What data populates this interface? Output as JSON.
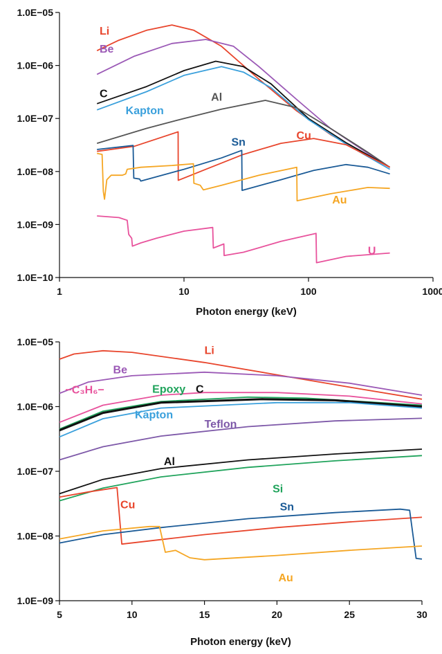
{
  "chart_data": [
    {
      "type": "line",
      "title": "",
      "xlabel": "Photon energy (keV)",
      "ylabel": "",
      "xscale": "log",
      "yscale": "log",
      "xlim": [
        1,
        1000
      ],
      "ylim": [
        1e-10,
        1e-05
      ],
      "xticks": [
        {
          "value": 1,
          "label": "1"
        },
        {
          "value": 10,
          "label": "10"
        },
        {
          "value": 100,
          "label": "100"
        },
        {
          "value": 1000,
          "label": "1000"
        }
      ],
      "yticks": [
        {
          "value": 1e-10,
          "label": "1.0E−10"
        },
        {
          "value": 1e-09,
          "label": "1.0E−09"
        },
        {
          "value": 1e-08,
          "label": "1.0E−08"
        },
        {
          "value": 1e-07,
          "label": "1.0E−07"
        },
        {
          "value": 1e-06,
          "label": "1.0E−06"
        },
        {
          "value": 1e-05,
          "label": "1.0E−05"
        }
      ],
      "grid": false,
      "series": [
        {
          "name": "Li",
          "color": "#e8452c",
          "label_at": [
            2.1,
            4.6e-06
          ],
          "points": [
            [
              2,
              1.9e-06
            ],
            [
              3,
              3e-06
            ],
            [
              5,
              4.6e-06
            ],
            [
              8,
              5.8e-06
            ],
            [
              12,
              4.6e-06
            ],
            [
              20,
              2.3e-06
            ],
            [
              40,
              5.5e-07
            ],
            [
              80,
              1.4e-07
            ],
            [
              150,
              5e-08
            ],
            [
              300,
              2e-08
            ],
            [
              450,
              1.2e-08
            ]
          ]
        },
        {
          "name": "Be",
          "color": "#9b59b6",
          "label_at": [
            2.1,
            2.1e-06
          ],
          "points": [
            [
              2,
              6.8e-07
            ],
            [
              4,
              1.5e-06
            ],
            [
              8,
              2.6e-06
            ],
            [
              15,
              3.1e-06
            ],
            [
              25,
              2.3e-06
            ],
            [
              40,
              9.5e-07
            ],
            [
              80,
              2.3e-07
            ],
            [
              150,
              6.5e-08
            ],
            [
              300,
              2.2e-08
            ],
            [
              450,
              1.2e-08
            ]
          ]
        },
        {
          "name": "C",
          "color": "#111111",
          "label_at": [
            2.1,
            3e-07
          ],
          "points": [
            [
              2,
              1.9e-07
            ],
            [
              5,
              4e-07
            ],
            [
              10,
              8e-07
            ],
            [
              18,
              1.2e-06
            ],
            [
              30,
              9.5e-07
            ],
            [
              50,
              4.5e-07
            ],
            [
              100,
              1e-07
            ],
            [
              200,
              3.5e-08
            ],
            [
              450,
              1.2e-08
            ]
          ]
        },
        {
          "name": "Kapton",
          "color": "#3aa0dc",
          "label_at": [
            3.4,
            1.45e-07
          ],
          "points": [
            [
              2,
              1.45e-07
            ],
            [
              5,
              3.2e-07
            ],
            [
              10,
              6.5e-07
            ],
            [
              20,
              9.5e-07
            ],
            [
              30,
              7.5e-07
            ],
            [
              50,
              3.8e-07
            ],
            [
              100,
              9.5e-08
            ],
            [
              200,
              3.3e-08
            ],
            [
              450,
              1.1e-08
            ]
          ]
        },
        {
          "name": "Al",
          "color": "#555555",
          "label_at": [
            16.5,
            2.6e-07
          ],
          "points": [
            [
              2,
              3.4e-08
            ],
            [
              5,
              6.5e-08
            ],
            [
              10,
              1e-07
            ],
            [
              20,
              1.5e-07
            ],
            [
              45,
              2.2e-07
            ],
            [
              80,
              1.6e-07
            ],
            [
              150,
              6.5e-08
            ],
            [
              300,
              2.3e-08
            ],
            [
              450,
              1.2e-08
            ]
          ]
        },
        {
          "name": "Cu",
          "color": "#e8452c",
          "label_at": [
            80,
            4.9e-08
          ],
          "points": [
            [
              2,
              2.4e-08
            ],
            [
              4,
              3e-08
            ],
            [
              8.97,
              5.6e-08
            ],
            [
              8.99,
              6.8e-09
            ],
            [
              15,
              1.1e-08
            ],
            [
              30,
              2.1e-08
            ],
            [
              60,
              3.4e-08
            ],
            [
              110,
              4.2e-08
            ],
            [
              200,
              3.2e-08
            ],
            [
              450,
              1.2e-08
            ]
          ]
        },
        {
          "name": "Sn",
          "color": "#1a5a96",
          "label_at": [
            24,
            3.7e-08
          ],
          "points": [
            [
              2,
              2.6e-08
            ],
            [
              3.9,
              3.1e-08
            ],
            [
              3.95,
              7.5e-09
            ],
            [
              4.4,
              7.2e-09
            ],
            [
              4.5,
              6.6e-09
            ],
            [
              10,
              1.1e-08
            ],
            [
              20,
              1.8e-08
            ],
            [
              29.1,
              2.5e-08
            ],
            [
              29.3,
              4.4e-09
            ],
            [
              60,
              7e-09
            ],
            [
              110,
              1.05e-08
            ],
            [
              200,
              1.35e-08
            ],
            [
              300,
              1.2e-08
            ],
            [
              450,
              9e-09
            ]
          ]
        },
        {
          "name": "Au",
          "color": "#f5a623",
          "label_at": [
            155,
            3e-09
          ],
          "points": [
            [
              2,
              2.2e-08
            ],
            [
              2.2,
              2.1e-08
            ],
            [
              2.25,
              4.2e-09
            ],
            [
              2.3,
              3e-09
            ],
            [
              2.4,
              7e-09
            ],
            [
              2.6,
              8.5e-09
            ],
            [
              3.2,
              8.5e-09
            ],
            [
              3.4,
              9e-09
            ],
            [
              3.5,
              1.1e-08
            ],
            [
              4.5,
              1.2e-08
            ],
            [
              8,
              1.3e-08
            ],
            [
              11.9,
              1.4e-08
            ],
            [
              12,
              6e-09
            ],
            [
              13.5,
              5.5e-09
            ],
            [
              14.3,
              4.5e-09
            ],
            [
              20,
              5.5e-09
            ],
            [
              40,
              8.5e-09
            ],
            [
              80.5,
              1.2e-08
            ],
            [
              81,
              2.8e-09
            ],
            [
              150,
              3.8e-09
            ],
            [
              300,
              5e-09
            ],
            [
              450,
              4.8e-09
            ]
          ]
        },
        {
          "name": "U",
          "color": "#e8529c",
          "label_at": [
            300,
            3.3e-10
          ],
          "points": [
            [
              2,
              1.45e-09
            ],
            [
              3,
              1.35e-09
            ],
            [
              3.5,
              1.2e-09
            ],
            [
              3.6,
              6.5e-10
            ],
            [
              3.8,
              5.5e-10
            ],
            [
              3.85,
              3.9e-10
            ],
            [
              4.5,
              4.5e-10
            ],
            [
              6,
              5.5e-10
            ],
            [
              10,
              7.5e-10
            ],
            [
              17,
              8.8e-10
            ],
            [
              17.2,
              3.6e-10
            ],
            [
              20.9,
              4.3e-10
            ],
            [
              21,
              2.6e-10
            ],
            [
              30,
              3e-10
            ],
            [
              60,
              4.8e-10
            ],
            [
              115,
              6.8e-10
            ],
            [
              116,
              1.9e-10
            ],
            [
              200,
              2.5e-10
            ],
            [
              450,
              2.9e-10
            ]
          ]
        }
      ]
    },
    {
      "type": "line",
      "title": "",
      "xlabel": "Photon energy (keV)",
      "ylabel": "",
      "xscale": "linear",
      "yscale": "log",
      "xlim": [
        5,
        30
      ],
      "ylim": [
        1e-09,
        1e-05
      ],
      "xticks": [
        {
          "value": 5,
          "label": "5"
        },
        {
          "value": 10,
          "label": "10"
        },
        {
          "value": 15,
          "label": "15"
        },
        {
          "value": 20,
          "label": "20"
        },
        {
          "value": 25,
          "label": "25"
        },
        {
          "value": 30,
          "label": "30"
        }
      ],
      "yticks": [
        {
          "value": 1e-09,
          "label": "1.0E−09"
        },
        {
          "value": 1e-08,
          "label": "1.0E−08"
        },
        {
          "value": 1e-07,
          "label": "1.0E−07"
        },
        {
          "value": 1e-06,
          "label": "1.0E−06"
        },
        {
          "value": 1e-05,
          "label": "1.0E−05"
        }
      ],
      "grid": false,
      "series": [
        {
          "name": "Li",
          "color": "#e8452c",
          "label_at": [
            15,
            7.5e-06
          ],
          "points": [
            [
              5,
              5.4e-06
            ],
            [
              6,
              6.5e-06
            ],
            [
              8,
              7.3e-06
            ],
            [
              10,
              6.9e-06
            ],
            [
              15,
              4.8e-06
            ],
            [
              20,
              3.1e-06
            ],
            [
              25,
              2e-06
            ],
            [
              30,
              1.3e-06
            ]
          ]
        },
        {
          "name": "Be",
          "color": "#9b59b6",
          "label_at": [
            8.7,
            3.8e-06
          ],
          "points": [
            [
              5,
              1.6e-06
            ],
            [
              7,
              2.4e-06
            ],
            [
              10,
              3e-06
            ],
            [
              15,
              3.4e-06
            ],
            [
              20,
              3e-06
            ],
            [
              25,
              2.3e-06
            ],
            [
              30,
              1.5e-06
            ]
          ]
        },
        {
          "name": "−C₃H₆−",
          "color": "#e8529c",
          "label_at": [
            5.4,
            1.85e-06
          ],
          "points": [
            [
              5,
              5.7e-07
            ],
            [
              8,
              1.05e-06
            ],
            [
              12,
              1.5e-06
            ],
            [
              15,
              1.65e-06
            ],
            [
              20,
              1.65e-06
            ],
            [
              25,
              1.45e-06
            ],
            [
              30,
              1.1e-06
            ]
          ]
        },
        {
          "name": "Epoxy",
          "color": "#1fa35b",
          "label_at": [
            11.4,
            1.9e-06
          ],
          "points": [
            [
              5,
              4.5e-07
            ],
            [
              8,
              8.5e-07
            ],
            [
              12,
              1.2e-06
            ],
            [
              18,
              1.4e-06
            ],
            [
              22,
              1.35e-06
            ],
            [
              30,
              1.05e-06
            ]
          ]
        },
        {
          "name": "C",
          "color": "#111111",
          "label_at": [
            14.4,
            1.9e-06
          ],
          "width": 3,
          "points": [
            [
              5,
              4.3e-07
            ],
            [
              8,
              8e-07
            ],
            [
              12,
              1.15e-06
            ],
            [
              19,
              1.3e-06
            ],
            [
              24,
              1.25e-06
            ],
            [
              30,
              1e-06
            ]
          ]
        },
        {
          "name": "Kapton",
          "color": "#3aa0dc",
          "label_at": [
            10.2,
            7.6e-07
          ],
          "points": [
            [
              5,
              3.4e-07
            ],
            [
              8,
              6.5e-07
            ],
            [
              12,
              9.5e-07
            ],
            [
              20,
              1.15e-06
            ],
            [
              25,
              1.15e-06
            ],
            [
              30,
              9.5e-07
            ]
          ]
        },
        {
          "name": "Teflon",
          "color": "#7d58a8",
          "label_at": [
            15,
            5.5e-07
          ],
          "points": [
            [
              5,
              1.5e-07
            ],
            [
              8,
              2.4e-07
            ],
            [
              12,
              3.5e-07
            ],
            [
              18,
              4.9e-07
            ],
            [
              24,
              6e-07
            ],
            [
              30,
              6.6e-07
            ]
          ]
        },
        {
          "name": "Al",
          "color": "#111111",
          "label_at": [
            12.2,
            1.45e-07
          ],
          "points": [
            [
              5,
              4.5e-08
            ],
            [
              8,
              7.5e-08
            ],
            [
              12,
              1.1e-07
            ],
            [
              18,
              1.5e-07
            ],
            [
              24,
              1.85e-07
            ],
            [
              30,
              2.2e-07
            ]
          ]
        },
        {
          "name": "Si",
          "color": "#1fa35b",
          "label_at": [
            19.7,
            5.5e-08
          ],
          "points": [
            [
              5,
              3.5e-08
            ],
            [
              8,
              5.5e-08
            ],
            [
              12,
              8.2e-08
            ],
            [
              18,
              1.15e-07
            ],
            [
              24,
              1.45e-07
            ],
            [
              30,
              1.75e-07
            ]
          ]
        },
        {
          "name": "Cu",
          "color": "#e8452c",
          "label_at": [
            9.2,
            3.1e-08
          ],
          "points": [
            [
              5,
              4e-08
            ],
            [
              7,
              4.8e-08
            ],
            [
              8.97,
              5.6e-08
            ],
            [
              9.3,
              7.5e-09
            ],
            [
              12,
              8.8e-09
            ],
            [
              15,
              1.05e-08
            ],
            [
              20,
              1.35e-08
            ],
            [
              25,
              1.65e-08
            ],
            [
              30,
              1.95e-08
            ]
          ]
        },
        {
          "name": "Sn",
          "color": "#1a5a96",
          "label_at": [
            20.2,
            2.9e-08
          ],
          "points": [
            [
              5,
              7.8e-09
            ],
            [
              8,
              1.05e-08
            ],
            [
              12,
              1.35e-08
            ],
            [
              18,
              1.85e-08
            ],
            [
              24,
              2.3e-08
            ],
            [
              28.5,
              2.6e-08
            ],
            [
              29.15,
              2.5e-08
            ],
            [
              29.6,
              4.5e-09
            ],
            [
              30,
              4.4e-09
            ]
          ]
        },
        {
          "name": "Au",
          "color": "#f5a623",
          "label_at": [
            20.1,
            2.3e-09
          ],
          "points": [
            [
              5,
              9e-09
            ],
            [
              8,
              1.2e-08
            ],
            [
              11.2,
              1.4e-08
            ],
            [
              11.9,
              1.4e-08
            ],
            [
              12.3,
              5.6e-09
            ],
            [
              13,
              6e-09
            ],
            [
              14,
              4.6e-09
            ],
            [
              15,
              4.3e-09
            ],
            [
              20,
              5e-09
            ],
            [
              25,
              6e-09
            ],
            [
              30,
              7e-09
            ]
          ]
        }
      ]
    }
  ]
}
